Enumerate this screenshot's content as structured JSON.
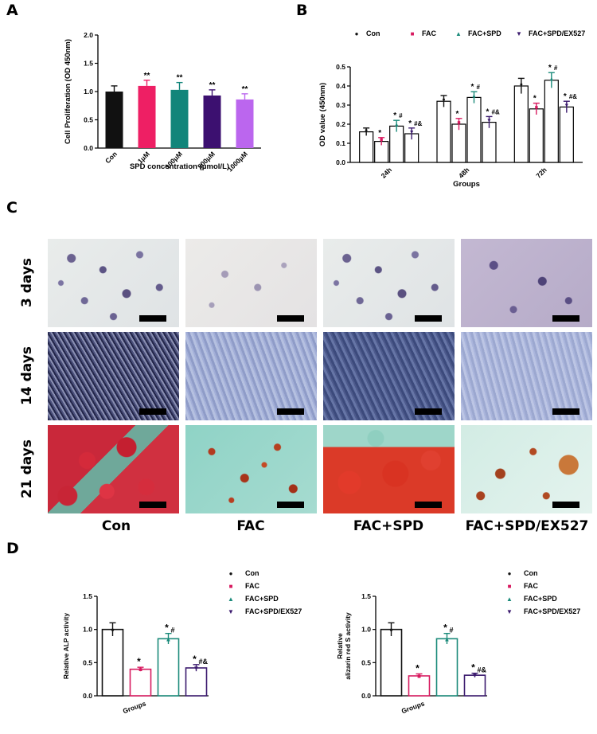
{
  "panels": {
    "a": "A",
    "b": "B",
    "c": "C",
    "d": "D"
  },
  "chart_data": [
    {
      "id": "A",
      "type": "bar",
      "categories": [
        "Con",
        "1μM",
        "100μM",
        "500μM",
        "1000μM"
      ],
      "values": [
        1.0,
        1.1,
        1.03,
        0.93,
        0.86
      ],
      "errors": [
        0.1,
        0.1,
        0.13,
        0.1,
        0.1
      ],
      "significance": [
        "",
        "**",
        "**",
        "**",
        "**"
      ],
      "colors": [
        "#111111",
        "#ee1f64",
        "#11857a",
        "#3c1070",
        "#bb66ee"
      ],
      "xlabel": "SPD concentration (μmol/L)",
      "ylabel": "Cell Proliferation (OD 450nm)",
      "ylim": [
        0,
        2.0
      ],
      "yticks": [
        "0.0",
        "0.5",
        "1.0",
        "1.5",
        "2.0"
      ]
    },
    {
      "id": "B",
      "type": "bar",
      "categories": [
        "24h",
        "48h",
        "72h"
      ],
      "series": [
        {
          "name": "Con",
          "values": [
            0.16,
            0.32,
            0.4
          ],
          "errors": [
            0.02,
            0.03,
            0.04
          ],
          "sig": [
            "",
            "",
            ""
          ],
          "sub": [
            "",
            "",
            ""
          ],
          "color": "#111111"
        },
        {
          "name": "FAC",
          "values": [
            0.11,
            0.2,
            0.28
          ],
          "errors": [
            0.02,
            0.03,
            0.03
          ],
          "sig": [
            "*",
            "*",
            "*"
          ],
          "sub": [
            "",
            "",
            ""
          ],
          "color": "#d81b60"
        },
        {
          "name": "FAC+SPD",
          "values": [
            0.19,
            0.34,
            0.43
          ],
          "errors": [
            0.03,
            0.03,
            0.04
          ],
          "sig": [
            "*",
            "*",
            "*"
          ],
          "sub": [
            "#",
            "#",
            "#"
          ],
          "color": "#1a8a7a"
        },
        {
          "name": "FAC+SPD/EX527",
          "values": [
            0.15,
            0.21,
            0.29
          ],
          "errors": [
            0.03,
            0.03,
            0.03
          ],
          "sig": [
            "*",
            "*",
            "*"
          ],
          "sub": [
            "#&",
            "#&",
            "#&"
          ],
          "color": "#3b1a6e"
        }
      ],
      "legend_markers": [
        "●",
        "■",
        "▲",
        "▼"
      ],
      "xlabel": "Groups",
      "ylabel": "OD value (450nm)",
      "ylim": [
        0,
        0.5
      ],
      "yticks": [
        "0.0",
        "0.1",
        "0.2",
        "0.3",
        "0.4",
        "0.5"
      ]
    },
    {
      "id": "D1",
      "type": "bar",
      "categories": [
        "Con",
        "FAC",
        "FAC+SPD",
        "FAC+SPD/EX527"
      ],
      "values": [
        1.0,
        0.4,
        0.86,
        0.42
      ],
      "errors": [
        0.1,
        0.03,
        0.08,
        0.05
      ],
      "sig": [
        "",
        "*",
        "*",
        "*"
      ],
      "sub": [
        "",
        "",
        "#",
        "#&"
      ],
      "colors": [
        "#111111",
        "#d81b60",
        "#1a8a7a",
        "#3b1a6e"
      ],
      "legend_markers": [
        "●",
        "■",
        "▲",
        "▼"
      ],
      "xlabel": "Groups",
      "ylabel": "Relative ALP activity",
      "ylim": [
        0,
        1.5
      ],
      "yticks": [
        "0.0",
        "0.5",
        "1.0",
        "1.5"
      ]
    },
    {
      "id": "D2",
      "type": "bar",
      "categories": [
        "Con",
        "FAC",
        "FAC+SPD",
        "FAC+SPD/EX527"
      ],
      "values": [
        1.0,
        0.3,
        0.86,
        0.31
      ],
      "errors": [
        0.1,
        0.03,
        0.08,
        0.03
      ],
      "sig": [
        "",
        "*",
        "*",
        "*"
      ],
      "sub": [
        "",
        "",
        "#",
        "#&"
      ],
      "colors": [
        "#111111",
        "#d81b60",
        "#1a8a7a",
        "#3b1a6e"
      ],
      "legend_markers": [
        "●",
        "■",
        "▲",
        "▼"
      ],
      "xlabel": "Groups",
      "ylabel_lines": [
        "Relative",
        "alizarin red S activity"
      ],
      "ylim": [
        0,
        1.5
      ],
      "yticks": [
        "0.0",
        "0.5",
        "1.0",
        "1.5"
      ]
    }
  ],
  "micrographs": {
    "row_labels": [
      "3 days",
      "14 days",
      "21 days"
    ],
    "col_labels": [
      "Con",
      "FAC",
      "FAC+SPD",
      "FAC+SPD/EX527"
    ]
  }
}
